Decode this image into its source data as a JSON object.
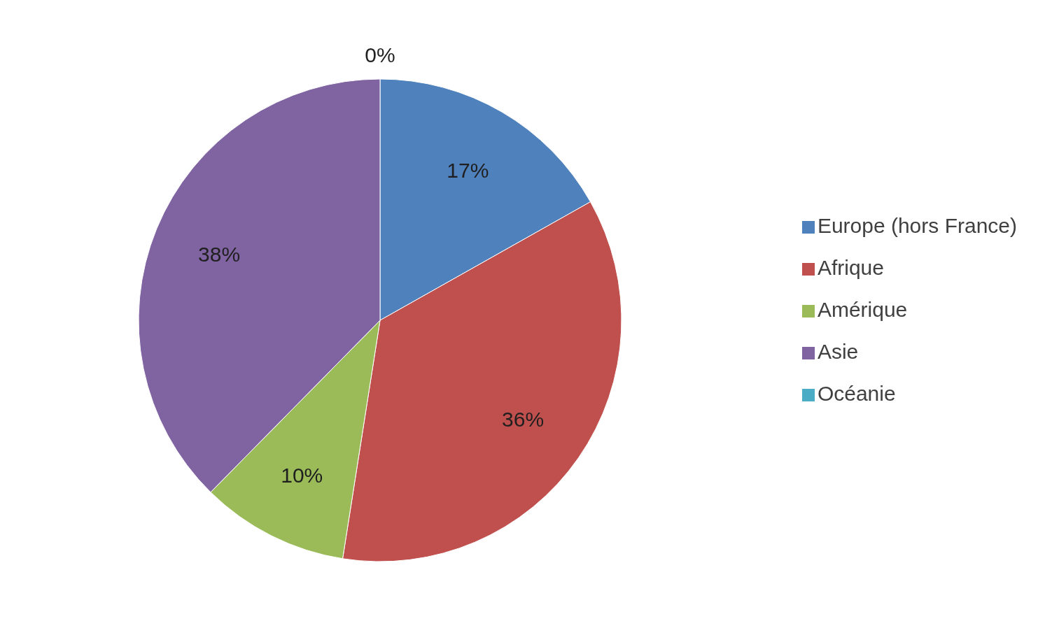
{
  "chart_data": {
    "type": "pie",
    "categories": [
      "Europe (hors France)",
      "Afrique",
      "Amérique",
      "Asie",
      "Océanie"
    ],
    "values": [
      17,
      36,
      10,
      38,
      0
    ],
    "colors": [
      "#4f81bd",
      "#c0504d",
      "#9bbb59",
      "#8064a2",
      "#4bacc6"
    ],
    "value_labels": [
      "17%",
      "36%",
      "10%",
      "38%",
      "0%"
    ],
    "legend": "right"
  }
}
